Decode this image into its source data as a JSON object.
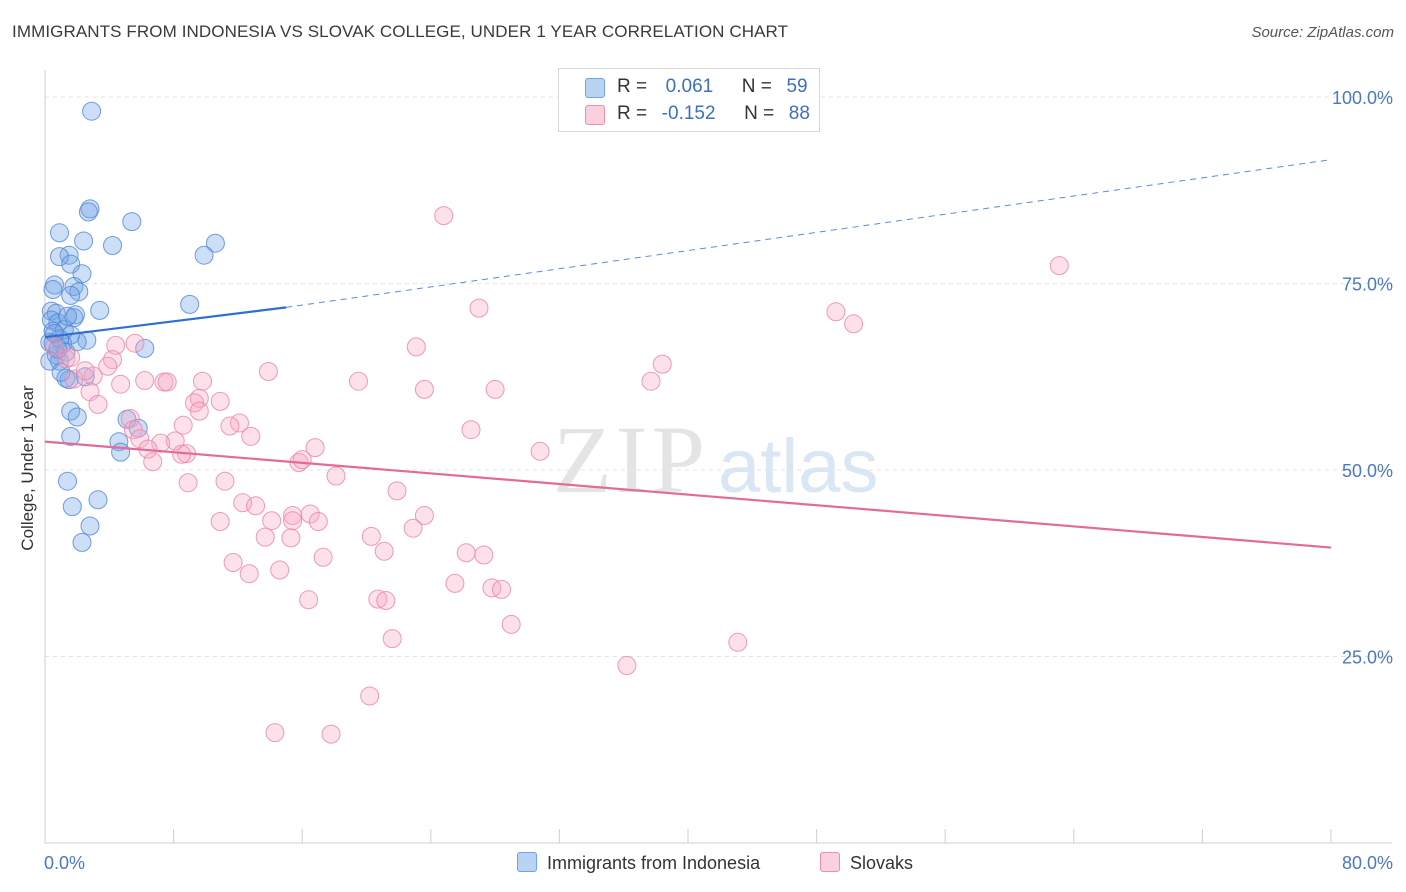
{
  "title": "IMMIGRANTS FROM INDONESIA VS SLOVAK COLLEGE, UNDER 1 YEAR CORRELATION CHART",
  "source": "Source: ZipAtlas.com",
  "watermark": {
    "zip": "ZIP",
    "atlas": "atlas"
  },
  "legend": {
    "rows": [
      {
        "r_label": "R =",
        "r_value": "0.061",
        "n_label": "N =",
        "n_value": "59",
        "color": "#6fa3e6"
      },
      {
        "r_label": "R =",
        "r_value": "-0.152",
        "n_label": "N =",
        "n_value": "88",
        "color": "#f08cb0"
      }
    ]
  },
  "bottom_legend": [
    {
      "label": "Immigrants from Indonesia",
      "color": "#6fa3e6"
    },
    {
      "label": "Slovaks",
      "color": "#f08cb0"
    }
  ],
  "chart_data": {
    "type": "scatter",
    "title": "IMMIGRANTS FROM INDONESIA VS SLOVAK COLLEGE, UNDER 1 YEAR CORRELATION CHART",
    "xlabel": "",
    "ylabel": "College, Under 1 year",
    "xlim": [
      0,
      80
    ],
    "ylim": [
      0,
      105
    ],
    "x_tick_labels": [
      "0.0%",
      "80.0%"
    ],
    "y_ticks": [
      25,
      50,
      75,
      100
    ],
    "y_tick_labels": [
      "25.0%",
      "50.0%",
      "75.0%",
      "100.0%"
    ],
    "series": [
      {
        "name": "Immigrants from Indonesia",
        "color": "#6fa3e6",
        "stroke": "#4f86d6",
        "trend": {
          "x0": 0,
          "y0": 67.8,
          "x1": 15,
          "y1": 71.8,
          "dash_x1": 80,
          "dash_y1": 91.6,
          "color": "#2f6fcf"
        },
        "points": [
          [
            2.9,
            98.1
          ],
          [
            2.8,
            85.0
          ],
          [
            2.7,
            84.6
          ],
          [
            5.4,
            83.3
          ],
          [
            0.9,
            81.8
          ],
          [
            2.4,
            80.7
          ],
          [
            4.2,
            80.1
          ],
          [
            10.6,
            80.4
          ],
          [
            1.5,
            78.8
          ],
          [
            0.9,
            78.6
          ],
          [
            9.9,
            78.8
          ],
          [
            1.6,
            77.6
          ],
          [
            2.3,
            76.3
          ],
          [
            0.6,
            74.8
          ],
          [
            1.8,
            74.6
          ],
          [
            0.5,
            74.2
          ],
          [
            2.1,
            73.9
          ],
          [
            1.6,
            73.4
          ],
          [
            9.0,
            72.2
          ],
          [
            0.4,
            71.3
          ],
          [
            0.7,
            71.0
          ],
          [
            3.4,
            71.4
          ],
          [
            1.9,
            70.8
          ],
          [
            1.8,
            70.4
          ],
          [
            0.4,
            70.1
          ],
          [
            0.8,
            69.7
          ],
          [
            0.5,
            68.6
          ],
          [
            1.2,
            68.8
          ],
          [
            1.6,
            68.1
          ],
          [
            0.9,
            67.6
          ],
          [
            0.3,
            67.1
          ],
          [
            1.1,
            66.9
          ],
          [
            2.6,
            67.4
          ],
          [
            0.5,
            67.0
          ],
          [
            6.2,
            66.3
          ],
          [
            0.7,
            65.4
          ],
          [
            1.3,
            65.8
          ],
          [
            0.9,
            64.6
          ],
          [
            0.3,
            64.6
          ],
          [
            1.5,
            62.1
          ],
          [
            1.3,
            62.3
          ],
          [
            1.0,
            63.1
          ],
          [
            2.5,
            62.5
          ],
          [
            1.6,
            57.9
          ],
          [
            2.0,
            57.1
          ],
          [
            5.1,
            56.8
          ],
          [
            5.8,
            55.6
          ],
          [
            1.6,
            54.5
          ],
          [
            4.6,
            53.8
          ],
          [
            4.7,
            52.4
          ],
          [
            1.4,
            48.5
          ],
          [
            3.3,
            46.0
          ],
          [
            1.7,
            45.1
          ],
          [
            2.8,
            42.5
          ],
          [
            2.3,
            40.3
          ],
          [
            0.6,
            68.3
          ],
          [
            0.8,
            66.2
          ],
          [
            1.4,
            70.6
          ],
          [
            2.0,
            67.2
          ]
        ]
      },
      {
        "name": "Slovaks",
        "color": "#f5a8c2",
        "stroke": "#ec82a8",
        "trend": {
          "x0": 0,
          "y0": 53.8,
          "x1": 80,
          "y1": 39.6,
          "color": "#e46b97"
        },
        "points": [
          [
            24.8,
            84.1
          ],
          [
            63.1,
            77.4
          ],
          [
            27.0,
            71.7
          ],
          [
            49.2,
            71.2
          ],
          [
            50.3,
            69.6
          ],
          [
            23.1,
            66.5
          ],
          [
            5.6,
            67.0
          ],
          [
            4.4,
            66.7
          ],
          [
            4.2,
            64.8
          ],
          [
            38.4,
            64.2
          ],
          [
            1.3,
            64.9
          ],
          [
            13.9,
            63.2
          ],
          [
            1.8,
            62.2
          ],
          [
            3.0,
            62.6
          ],
          [
            7.4,
            61.8
          ],
          [
            7.6,
            61.8
          ],
          [
            9.8,
            61.9
          ],
          [
            4.7,
            61.5
          ],
          [
            19.5,
            61.9
          ],
          [
            37.7,
            61.9
          ],
          [
            23.6,
            60.8
          ],
          [
            28.0,
            60.8
          ],
          [
            2.8,
            60.5
          ],
          [
            9.6,
            59.6
          ],
          [
            9.3,
            59.0
          ],
          [
            3.3,
            58.8
          ],
          [
            9.6,
            57.9
          ],
          [
            5.3,
            56.9
          ],
          [
            12.1,
            56.3
          ],
          [
            11.5,
            55.9
          ],
          [
            8.6,
            56.0
          ],
          [
            5.5,
            55.4
          ],
          [
            5.9,
            54.2
          ],
          [
            12.8,
            54.5
          ],
          [
            8.1,
            53.9
          ],
          [
            7.2,
            53.6
          ],
          [
            16.8,
            53.0
          ],
          [
            6.4,
            52.8
          ],
          [
            30.8,
            52.5
          ],
          [
            8.8,
            52.2
          ],
          [
            8.5,
            52.1
          ],
          [
            6.7,
            51.1
          ],
          [
            15.8,
            51.0
          ],
          [
            18.1,
            49.2
          ],
          [
            11.2,
            48.5
          ],
          [
            8.9,
            48.3
          ],
          [
            21.9,
            47.2
          ],
          [
            12.3,
            45.6
          ],
          [
            13.1,
            45.2
          ],
          [
            16.5,
            44.1
          ],
          [
            15.4,
            43.9
          ],
          [
            15.4,
            43.2
          ],
          [
            23.6,
            43.9
          ],
          [
            10.9,
            43.1
          ],
          [
            14.1,
            43.2
          ],
          [
            17.0,
            43.1
          ],
          [
            13.7,
            41.0
          ],
          [
            20.3,
            41.1
          ],
          [
            15.3,
            40.9
          ],
          [
            21.1,
            39.1
          ],
          [
            26.2,
            38.9
          ],
          [
            27.3,
            38.6
          ],
          [
            11.7,
            37.6
          ],
          [
            17.3,
            38.3
          ],
          [
            14.6,
            36.6
          ],
          [
            12.7,
            36.1
          ],
          [
            25.5,
            34.8
          ],
          [
            27.8,
            34.2
          ],
          [
            28.4,
            34.0
          ],
          [
            16.4,
            32.6
          ],
          [
            20.7,
            32.7
          ],
          [
            21.2,
            32.5
          ],
          [
            29.0,
            29.3
          ],
          [
            21.6,
            27.4
          ],
          [
            43.1,
            26.9
          ],
          [
            36.2,
            23.8
          ],
          [
            20.2,
            19.7
          ],
          [
            14.3,
            14.8
          ],
          [
            17.8,
            14.6
          ],
          [
            0.6,
            66.5
          ],
          [
            1.6,
            65.1
          ],
          [
            2.5,
            63.3
          ],
          [
            6.2,
            62.0
          ],
          [
            10.9,
            59.2
          ],
          [
            16.0,
            51.4
          ],
          [
            3.9,
            63.9
          ],
          [
            26.5,
            55.4
          ],
          [
            22.9,
            42.2
          ]
        ]
      }
    ]
  }
}
